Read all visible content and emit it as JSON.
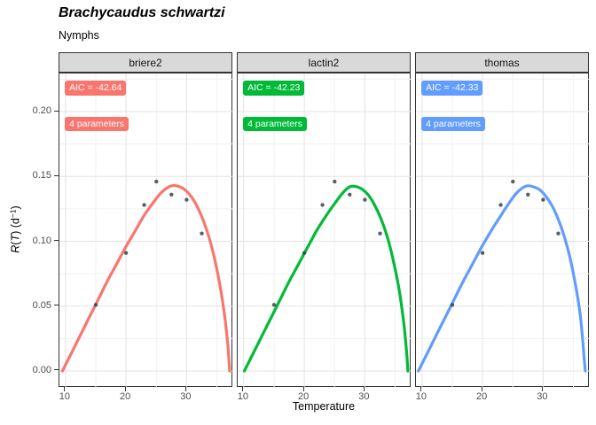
{
  "title": "Brachycaudus schwartzi",
  "subtitle": "Nymphs",
  "chart_data": {
    "type": "line",
    "description": "Faceted thermal performance curves (rate R(T) vs temperature) with observed points, one fitted model per facet",
    "axes": {
      "x_label": "Temperature",
      "y_label_text": "R(T) (d−1)",
      "y_label_parts": [
        {
          "t": "R",
          "i": true
        },
        {
          "t": "(",
          "i": false
        },
        {
          "t": "T",
          "i": true
        },
        {
          "t": ") (d",
          "i": false
        },
        {
          "t": "−1",
          "sup": true
        },
        {
          "t": ")",
          "i": false
        }
      ],
      "x_ticks": [
        {
          "v": 10,
          "label": "10"
        },
        {
          "v": 20,
          "label": "20"
        },
        {
          "v": 30,
          "label": "30"
        }
      ],
      "x_minor": [
        15,
        25,
        35
      ],
      "y_ticks": [
        {
          "v": 0,
          "label": "0.00"
        },
        {
          "v": 0.05,
          "label": "0.05"
        },
        {
          "v": 0.1,
          "label": "0.10"
        },
        {
          "v": 0.15,
          "label": "0.15"
        },
        {
          "v": 0.2,
          "label": "0.20"
        }
      ],
      "y_minor": [
        0.025,
        0.075,
        0.125,
        0.175,
        0.225
      ],
      "x_domain": [
        9.0,
        37.7
      ],
      "y_domain": [
        -0.013,
        0.2294
      ],
      "grid": true
    },
    "points": [
      [
        15,
        0.051
      ],
      [
        20,
        0.091
      ],
      [
        23,
        0.128
      ],
      [
        25,
        0.146
      ],
      [
        27.5,
        0.136
      ],
      [
        30,
        0.132
      ],
      [
        32.5,
        0.106
      ]
    ],
    "annotation_anchor": {
      "t": 9.9,
      "aic_r": 0.2175,
      "params_r": 0.19
    },
    "facets": [
      {
        "key": "briere2",
        "label": "briere2",
        "color": "#F8766D",
        "aic_label": "AIC = -42.64",
        "params_label": "4 parameters",
        "curve": [
          [
            9.5,
            0.0
          ],
          [
            11,
            0.014
          ],
          [
            12.5,
            0.028
          ],
          [
            14,
            0.042
          ],
          [
            15.5,
            0.056
          ],
          [
            17,
            0.07
          ],
          [
            18.5,
            0.083
          ],
          [
            20,
            0.096
          ],
          [
            21.5,
            0.108
          ],
          [
            23,
            0.12
          ],
          [
            24.5,
            0.13
          ],
          [
            25.8,
            0.1375
          ],
          [
            27,
            0.1418
          ],
          [
            27.8,
            0.143
          ],
          [
            28.6,
            0.1425
          ],
          [
            29.5,
            0.1405
          ],
          [
            30.5,
            0.136
          ],
          [
            31.5,
            0.129
          ],
          [
            32.5,
            0.119
          ],
          [
            33.5,
            0.106
          ],
          [
            34.5,
            0.089
          ],
          [
            35.5,
            0.066
          ],
          [
            36.3,
            0.042
          ],
          [
            36.8,
            0.02
          ],
          [
            37.1,
            0.0
          ]
        ]
      },
      {
        "key": "lactin2",
        "label": "lactin2",
        "color": "#00BA38",
        "aic_label": "AIC = -42.23",
        "params_label": "4 parameters",
        "curve": [
          [
            10.1,
            0.0
          ],
          [
            11.5,
            0.013
          ],
          [
            13,
            0.027
          ],
          [
            14.5,
            0.041
          ],
          [
            16,
            0.055
          ],
          [
            17.5,
            0.069
          ],
          [
            19,
            0.082
          ],
          [
            20.5,
            0.095
          ],
          [
            22,
            0.108
          ],
          [
            23.5,
            0.119
          ],
          [
            25,
            0.129
          ],
          [
            26.2,
            0.1365
          ],
          [
            27.2,
            0.1412
          ],
          [
            27.9,
            0.1425
          ],
          [
            28.7,
            0.142
          ],
          [
            29.6,
            0.14
          ],
          [
            30.6,
            0.1355
          ],
          [
            31.6,
            0.128
          ],
          [
            32.6,
            0.118
          ],
          [
            33.6,
            0.105
          ],
          [
            34.6,
            0.087
          ],
          [
            35.6,
            0.064
          ],
          [
            36.4,
            0.038
          ],
          [
            36.9,
            0.014
          ],
          [
            37.1,
            0.0
          ]
        ]
      },
      {
        "key": "thomas",
        "label": "thomas",
        "color": "#619CFF",
        "aic_label": "AIC = -42.33",
        "params_label": "4 parameters",
        "curve": [
          [
            9.4,
            0.0
          ],
          [
            10.9,
            0.014
          ],
          [
            12.4,
            0.028
          ],
          [
            13.9,
            0.042
          ],
          [
            15.4,
            0.056
          ],
          [
            16.9,
            0.07
          ],
          [
            18.4,
            0.083
          ],
          [
            19.9,
            0.096
          ],
          [
            21.4,
            0.108
          ],
          [
            22.9,
            0.119
          ],
          [
            24.3,
            0.129
          ],
          [
            25.6,
            0.1372
          ],
          [
            26.7,
            0.1415
          ],
          [
            27.5,
            0.1428
          ],
          [
            28.4,
            0.142
          ],
          [
            29.4,
            0.1398
          ],
          [
            30.4,
            0.135
          ],
          [
            31.4,
            0.128
          ],
          [
            32.4,
            0.118
          ],
          [
            33.4,
            0.105
          ],
          [
            34.4,
            0.088
          ],
          [
            35.4,
            0.065
          ],
          [
            36.2,
            0.04
          ],
          [
            36.95,
            0.0
          ]
        ]
      }
    ]
  },
  "style": {
    "point_color": "#36454F",
    "strip_bg": "#D9D9D9",
    "panel_border": "#333333",
    "grid_major": "#E3E3E3",
    "grid_minor": "#F1F1F1",
    "tick_text": "#4D4D4D"
  }
}
